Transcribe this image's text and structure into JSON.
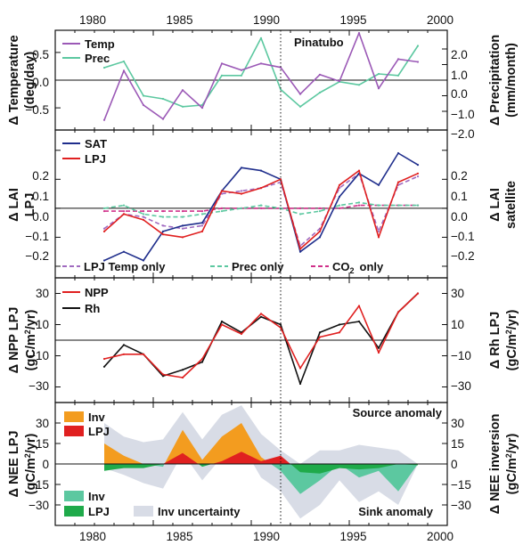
{
  "chart_data": [
    {
      "type": "line",
      "panel": "temperature-precipitation",
      "xlim": [
        1980,
        2000
      ],
      "xticks": [
        "1980",
        "1985",
        "1990",
        "1995",
        "2000"
      ],
      "ylabel_line1": "Δ Temperature",
      "ylabel_line2": "(deg/day)",
      "ylim": [
        -0.9,
        0.9
      ],
      "yticks": [
        -0.5,
        0.0,
        0.5
      ],
      "ytick_labels": [
        "−0.5",
        "0.0",
        "0.5"
      ],
      "y2label_line1": "Δ Precipitation",
      "y2label_line2": "(mm/month)",
      "y2lim": [
        -3.2,
        3.2
      ],
      "y2ticks": [
        -2.0,
        -1.0,
        0.0,
        1.0,
        2.0
      ],
      "y2tick_labels": [
        "−2.0",
        "−1.0",
        "0.0",
        "1.0",
        "2.0"
      ],
      "annotation": "Pinatubo",
      "event_year": 1991.5,
      "series": [
        {
          "name": "Temp",
          "color": "#9b59b6",
          "axis": "left",
          "x": [
            1982.5,
            1983.5,
            1984.5,
            1985.5,
            1986.5,
            1987.5,
            1988.5,
            1989.5,
            1990.5,
            1991.5,
            1992.5,
            1993.5,
            1994.5,
            1995.5,
            1996.5,
            1997.5,
            1998.5
          ],
          "values": [
            -0.72,
            0.17,
            -0.45,
            -0.7,
            -0.18,
            -0.5,
            0.3,
            0.18,
            0.3,
            0.23,
            -0.25,
            0.1,
            -0.02,
            0.85,
            -0.15,
            0.38,
            0.33
          ]
        },
        {
          "name": "Prec",
          "color": "#5cc8a0",
          "axis": "right",
          "x": [
            1982.5,
            1983.5,
            1984.5,
            1985.5,
            1986.5,
            1987.5,
            1988.5,
            1989.5,
            1990.5,
            1991.5,
            1992.5,
            1993.5,
            1994.5,
            1995.5,
            1996.5,
            1997.5,
            1998.5
          ],
          "values": [
            0.8,
            1.2,
            -1.0,
            -1.2,
            -1.7,
            -1.6,
            0.3,
            0.3,
            2.7,
            -0.6,
            -1.7,
            -0.8,
            -0.1,
            -0.3,
            0.4,
            0.3,
            2.2
          ]
        }
      ]
    },
    {
      "type": "line",
      "panel": "lai",
      "xlim": [
        1980,
        2000
      ],
      "ylabel_line1": "Δ LAI",
      "ylabel_line2": "LPJ",
      "ylim": [
        -0.24,
        0.27
      ],
      "yticks": [
        -0.2,
        -0.1,
        0.0,
        0.1,
        0.2
      ],
      "ytick_labels": [
        "−0.2",
        "−0.1",
        "0.0",
        "0.1",
        "0.2"
      ],
      "y2label_line1": "Δ LAI",
      "y2label_line2": "satellite",
      "y2lim": [
        -0.24,
        0.27
      ],
      "y2ticks": [
        -0.2,
        -0.1,
        0.0,
        0.1,
        0.2
      ],
      "y2tick_labels": [
        "−0.2",
        "−0.1",
        "0.0",
        "0.1",
        "0.2"
      ],
      "bottom_legend": [
        "LPJ Temp only",
        "Prec only",
        "CO",
        "2",
        "only"
      ],
      "series": [
        {
          "name": "SAT",
          "color": "#1f2e8c",
          "style": "solid",
          "x": [
            1982.5,
            1983.5,
            1984.5,
            1985.5,
            1986.5,
            1987.5,
            1988.5,
            1989.5,
            1990.5,
            1991.5,
            1992.5,
            1993.5,
            1994.5,
            1995.5,
            1996.5,
            1997.5,
            1998.5
          ],
          "values": [
            -0.18,
            -0.15,
            -0.18,
            -0.08,
            -0.06,
            -0.05,
            0.06,
            0.14,
            0.13,
            0.1,
            -0.15,
            -0.1,
            0.04,
            0.12,
            0.08,
            0.19,
            0.15
          ]
        },
        {
          "name": "LPJ",
          "color": "#e02020",
          "style": "solid",
          "x": [
            1982.5,
            1983.5,
            1984.5,
            1985.5,
            1986.5,
            1987.5,
            1988.5,
            1989.5,
            1990.5,
            1991.5,
            1992.5,
            1993.5,
            1994.5,
            1995.5,
            1996.5,
            1997.5,
            1998.5
          ],
          "values": [
            -0.08,
            -0.02,
            -0.04,
            -0.09,
            -0.1,
            -0.08,
            0.06,
            0.05,
            0.07,
            0.1,
            -0.14,
            -0.08,
            0.08,
            0.13,
            -0.1,
            0.09,
            0.12
          ]
        },
        {
          "name": "LPJ Temp only",
          "color": "#a06ac0",
          "style": "dashed",
          "x": [
            1982.5,
            1983.5,
            1984.5,
            1985.5,
            1986.5,
            1987.5,
            1988.5,
            1989.5,
            1990.5,
            1991.5,
            1992.5,
            1993.5,
            1994.5,
            1995.5,
            1996.5,
            1997.5,
            1998.5
          ],
          "values": [
            -0.07,
            -0.02,
            -0.03,
            -0.06,
            -0.07,
            -0.06,
            0.05,
            0.06,
            0.07,
            0.09,
            -0.13,
            -0.07,
            0.07,
            0.12,
            -0.08,
            0.08,
            0.11
          ]
        },
        {
          "name": "Prec only",
          "color": "#5cc8a0",
          "style": "dashed",
          "x": [
            1982.5,
            1983.5,
            1984.5,
            1985.5,
            1986.5,
            1987.5,
            1988.5,
            1989.5,
            1990.5,
            1991.5,
            1992.5,
            1993.5,
            1994.5,
            1995.5,
            1996.5,
            1997.5,
            1998.5
          ],
          "values": [
            0.0,
            0.01,
            -0.02,
            -0.03,
            -0.03,
            -0.02,
            -0.01,
            0.0,
            0.01,
            0.0,
            -0.02,
            -0.01,
            0.01,
            0.02,
            0.01,
            0.01,
            0.01
          ]
        },
        {
          "name": "CO2 only",
          "color": "#d0308a",
          "style": "dashed",
          "x": [
            1982.5,
            1983.5,
            1984.5,
            1985.5,
            1986.5,
            1987.5,
            1988.5,
            1989.5,
            1990.5,
            1991.5,
            1992.5,
            1993.5,
            1994.5,
            1995.5,
            1996.5,
            1997.5,
            1998.5
          ],
          "values": [
            -0.01,
            -0.01,
            -0.01,
            -0.01,
            -0.01,
            -0.01,
            0.0,
            0.0,
            0.0,
            0.0,
            0.0,
            0.0,
            0.0,
            0.01,
            0.01,
            0.01,
            0.01
          ]
        }
      ]
    },
    {
      "type": "line",
      "panel": "npp-rh",
      "xlim": [
        1980,
        2000
      ],
      "ylabel_line1": "Δ NPP LPJ",
      "ylabel_line2": "(gC/m",
      "ylabel_line2_sup": "2",
      "ylabel_line2_end": "/yr)",
      "ylim": [
        -40,
        40
      ],
      "yticks": [
        -30,
        -10,
        10,
        30
      ],
      "ytick_labels": [
        "−30",
        "−10",
        "10",
        "30"
      ],
      "y2label_line1": "Δ Rh LPJ",
      "y2label_line2": "(gC/m",
      "y2label_line2_sup": "2",
      "y2label_line2_end": "/yr)",
      "y2ticks": [
        -30,
        -10,
        10,
        30
      ],
      "y2tick_labels": [
        "−30",
        "−10",
        "10",
        "30"
      ],
      "series": [
        {
          "name": "NPP",
          "color": "#e02020",
          "x": [
            1982.5,
            1983.5,
            1984.5,
            1985.5,
            1986.5,
            1987.5,
            1988.5,
            1989.5,
            1990.5,
            1991.5,
            1992.5,
            1993.5,
            1994.5,
            1995.5,
            1996.5,
            1997.5,
            1998.5
          ],
          "values": [
            -12,
            -9,
            -9,
            -22,
            -24,
            -12,
            10,
            4,
            17,
            8,
            -18,
            2,
            5,
            22,
            -8,
            18,
            30
          ]
        },
        {
          "name": "Rh",
          "color": "#111111",
          "x": [
            1982.5,
            1983.5,
            1984.5,
            1985.5,
            1986.5,
            1987.5,
            1988.5,
            1989.5,
            1990.5,
            1991.5,
            1992.5,
            1993.5,
            1994.5,
            1995.5,
            1996.5,
            1997.5,
            1998.5
          ],
          "values": [
            -17,
            -3,
            -9,
            -23,
            -19,
            -14,
            12,
            5,
            15,
            10,
            -28,
            5,
            10,
            12,
            -5,
            18,
            30
          ]
        }
      ]
    },
    {
      "type": "area",
      "panel": "nee",
      "xlim": [
        1980,
        2000
      ],
      "ylabel_line1": "Δ NEE LPJ",
      "ylabel_line2": "(gC/m",
      "ylabel_line2_sup": "2",
      "ylabel_line2_end": "/yr)",
      "ylim": [
        -45,
        45
      ],
      "yticks": [
        -30,
        -15,
        0,
        15,
        30
      ],
      "ytick_labels": [
        "−30",
        "−15",
        "0",
        "15",
        "30"
      ],
      "y2label_line1": "Δ NEE inversion",
      "y2label_line2": "(gC/m",
      "y2label_line2_sup": "2",
      "y2label_line2_end": "/yr)",
      "y2ticks": [
        -30,
        -15,
        0,
        15,
        30
      ],
      "y2tick_labels": [
        "−30",
        "−15",
        "0",
        "15",
        "30"
      ],
      "annotation_source": "Source anomaly",
      "annotation_sink": "Sink anomaly",
      "legend_inv": "Inv",
      "legend_lpj": "LPJ",
      "legend_uncertainty": "Inv uncertainty",
      "colors": {
        "inv_source": "#f39c1f",
        "lpj_source": "#e02020",
        "inv_sink": "#5cc8a0",
        "lpj_sink": "#1faa4a",
        "uncertainty": "#d8dce6"
      },
      "x": [
        1982.5,
        1983.5,
        1984.5,
        1985.5,
        1986.5,
        1987.5,
        1988.5,
        1989.5,
        1990.5,
        1991.5,
        1992.5,
        1993.5,
        1994.5,
        1995.5,
        1996.5,
        1997.5,
        1998.5
      ],
      "inv": [
        15,
        6,
        0,
        -2,
        25,
        3,
        20,
        30,
        5,
        -5,
        -22,
        -12,
        0,
        -10,
        -5,
        -20,
        0
      ],
      "lpj": [
        -5,
        -3,
        -3,
        0,
        8,
        -2,
        2,
        9,
        2,
        6,
        -6,
        -7,
        -3,
        -4,
        -3,
        0,
        -1
      ],
      "unc_upper": [
        30,
        20,
        16,
        18,
        38,
        18,
        36,
        43,
        22,
        10,
        0,
        10,
        10,
        14,
        12,
        10,
        0
      ],
      "unc_lower": [
        -3,
        -8,
        -14,
        -18,
        8,
        -12,
        5,
        15,
        -10,
        -20,
        -40,
        -30,
        -12,
        -28,
        -20,
        -30,
        0
      ]
    }
  ]
}
